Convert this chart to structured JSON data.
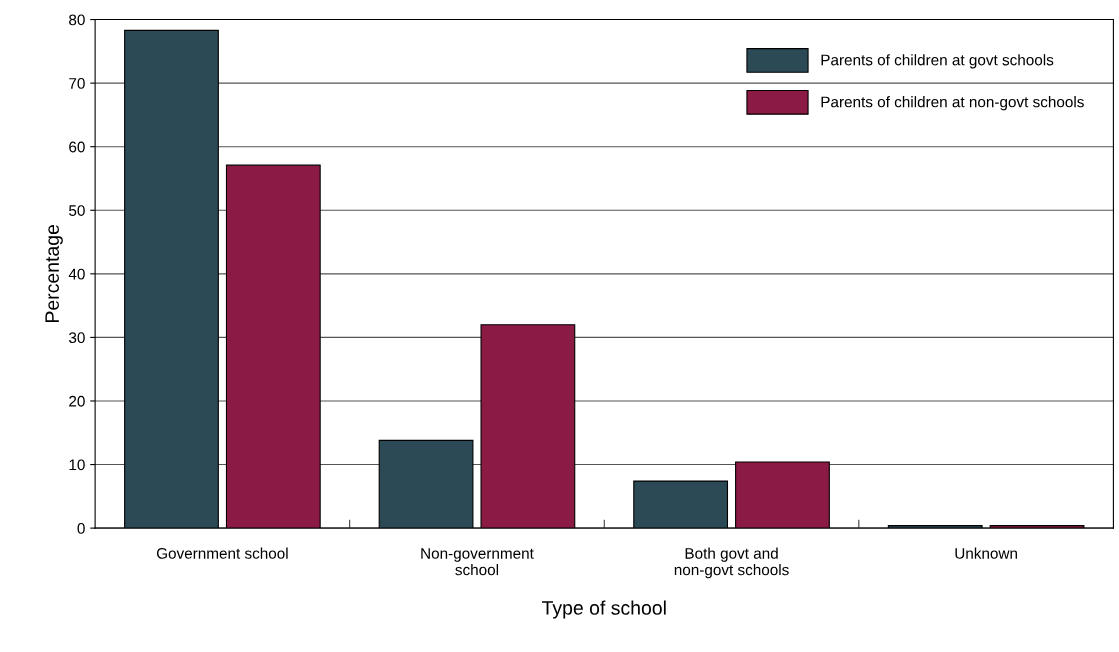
{
  "chart_data": {
    "type": "bar",
    "xlabel": "Type of school",
    "ylabel": "Percentage",
    "categories": [
      "Government school",
      "Non-government\nschool",
      "Both govt and\nnon-govt schools",
      "Unknown"
    ],
    "series": [
      {
        "name": "Parents of children at govt schools",
        "color": "#2b4a55",
        "values": [
          78.3,
          13.8,
          7.4,
          0.4
        ]
      },
      {
        "name": "Parents of children at non-govt schools",
        "color": "#8b1a45",
        "values": [
          57.1,
          32,
          10.4,
          0.4
        ]
      }
    ],
    "ylim": [
      0,
      80
    ],
    "yticks": [
      0,
      10,
      20,
      30,
      40,
      50,
      60,
      70,
      80
    ],
    "grid": "y",
    "legend": "top right"
  }
}
